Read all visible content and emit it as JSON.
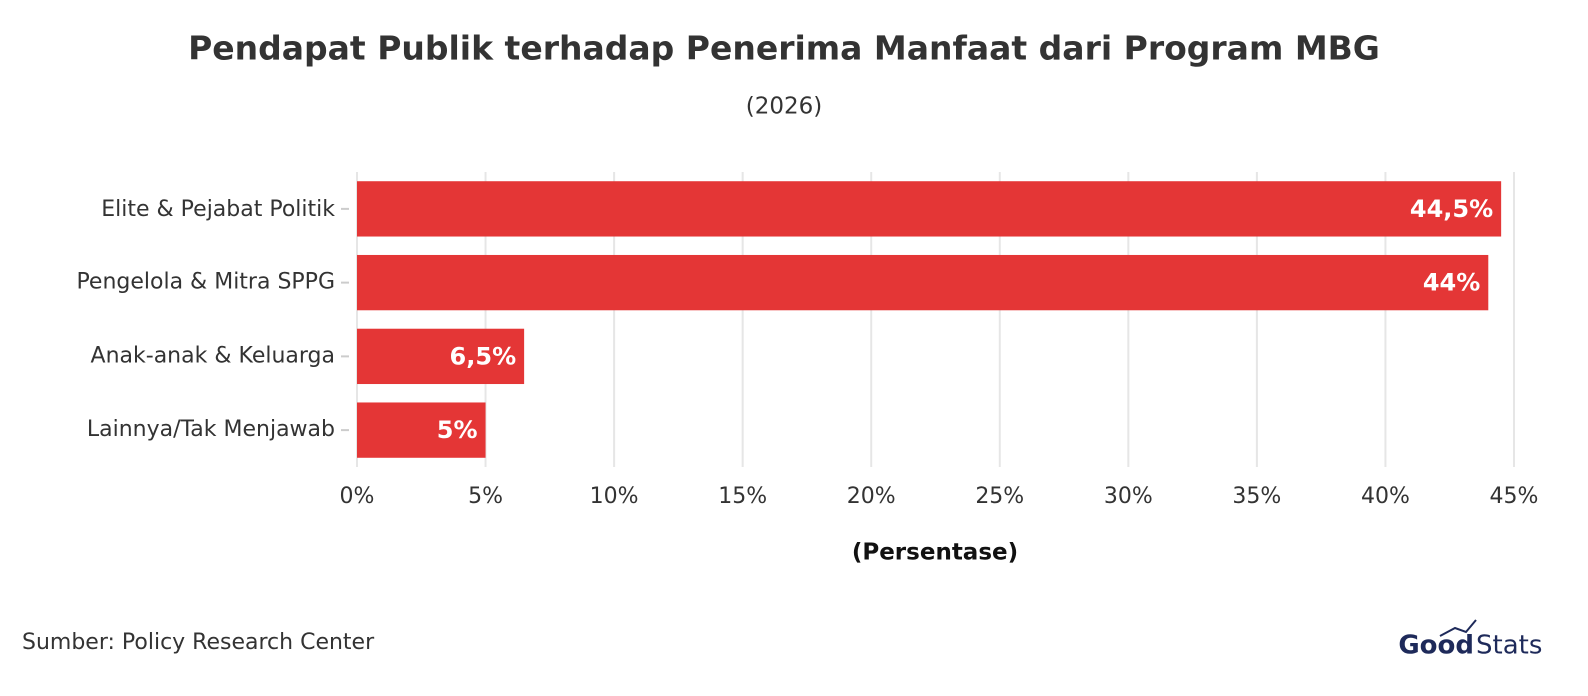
{
  "chart_data": {
    "type": "bar",
    "orientation": "horizontal",
    "title": "Pendapat Publik terhadap Penerima Manfaat dari Program MBG",
    "subtitle": "(2026)",
    "x_label": "(Persentase)",
    "categories": [
      "Elite & Pejabat Politik",
      "Pengelola & Mitra SPPG",
      "Anak-anak & Keluarga",
      "Lainnya/Tak Menjawab"
    ],
    "values": [
      44.5,
      44,
      6.5,
      5
    ],
    "value_labels": [
      "44,5%",
      "44%",
      "6,5%",
      "5%"
    ],
    "color": "#e43636",
    "xlim": [
      0,
      45
    ],
    "xticks": [
      {
        "value": 0,
        "label": "0%"
      },
      {
        "value": 5,
        "label": "5%"
      },
      {
        "value": 10,
        "label": "10%"
      },
      {
        "value": 15,
        "label": "15%"
      },
      {
        "value": 20,
        "label": "20%"
      },
      {
        "value": 25,
        "label": "25%"
      },
      {
        "value": 30,
        "label": "30%"
      },
      {
        "value": 35,
        "label": "35%"
      },
      {
        "value": 40,
        "label": "40%"
      },
      {
        "value": 45,
        "label": "45%"
      }
    ],
    "grid": true,
    "source": "Sumber: Policy Research Center",
    "logo": {
      "bold": "Good",
      "light": "Stats"
    }
  }
}
